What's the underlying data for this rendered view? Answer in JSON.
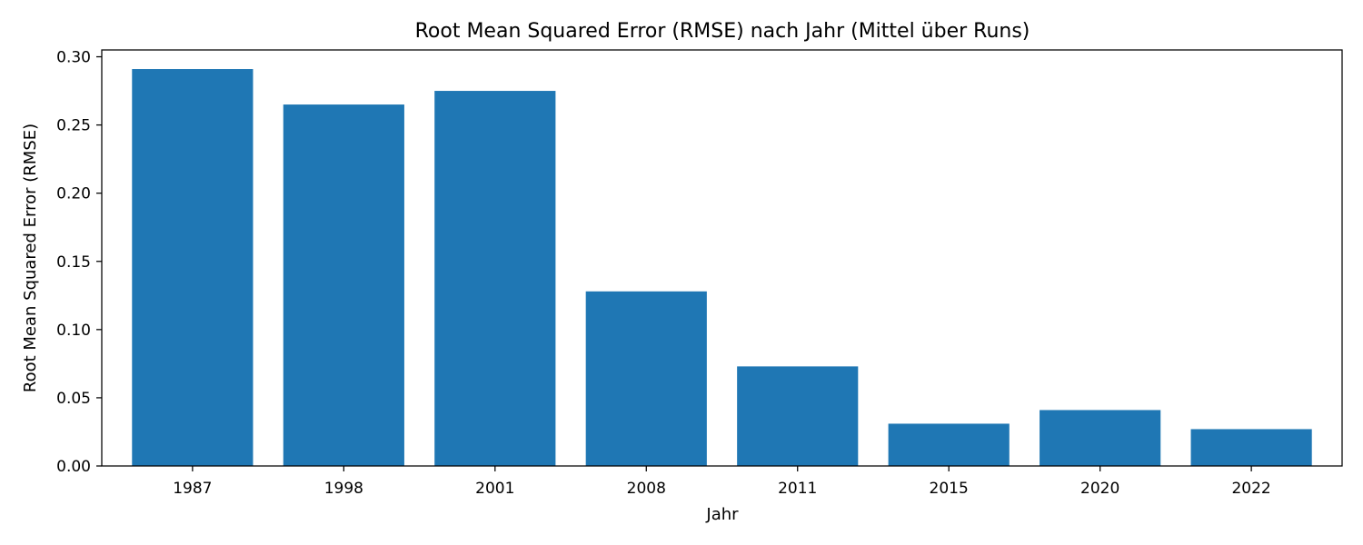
{
  "chart_data": {
    "type": "bar",
    "title": "Root Mean Squared Error (RMSE) nach Jahr (Mittel über Runs)",
    "xlabel": "Jahr",
    "ylabel": "Root Mean Squared Error (RMSE)",
    "categories": [
      "1987",
      "1998",
      "2001",
      "2008",
      "2011",
      "2015",
      "2020",
      "2022"
    ],
    "values": [
      0.291,
      0.265,
      0.275,
      0.128,
      0.073,
      0.031,
      0.041,
      0.027
    ],
    "ylim": [
      0,
      0.305
    ],
    "yticks": [
      0.0,
      0.05,
      0.1,
      0.15,
      0.2,
      0.25,
      0.3
    ],
    "ytick_labels": [
      "0.00",
      "0.05",
      "0.10",
      "0.15",
      "0.20",
      "0.25",
      "0.30"
    ],
    "grid": false,
    "legend": "none",
    "colors": {
      "bar": "#1f77b4"
    }
  }
}
